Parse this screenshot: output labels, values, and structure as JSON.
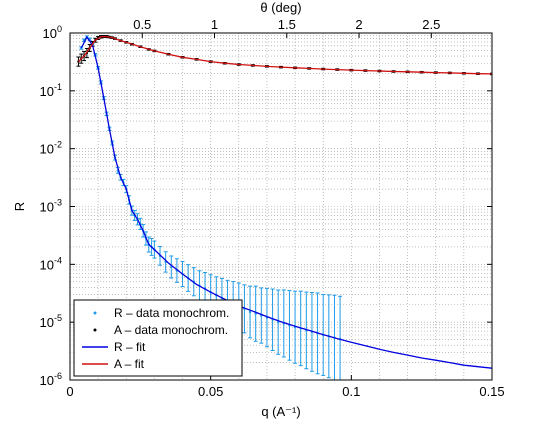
{
  "chart_data": {
    "type": "line",
    "title": "",
    "xlabel": "q (A⁻¹)",
    "ylabel": "R",
    "top_xlabel": "θ (deg)",
    "xlim": [
      0,
      0.15
    ],
    "ylim": [
      1e-06,
      1
    ],
    "yscale": "log",
    "grid": true,
    "legend_location": "bottom-left",
    "x_ticks": [
      "0",
      "0.05",
      "0.1",
      "0.15"
    ],
    "top_x_ticks": [
      "0.5",
      "1",
      "1.5",
      "2",
      "2.5"
    ],
    "y_ticks": [
      {
        "base": "10",
        "exp": "-6"
      },
      {
        "base": "10",
        "exp": "-5"
      },
      {
        "base": "10",
        "exp": "-4"
      },
      {
        "base": "10",
        "exp": "-3"
      },
      {
        "base": "10",
        "exp": "-2"
      },
      {
        "base": "10",
        "exp": "-1"
      },
      {
        "base": "10",
        "exp": "0"
      }
    ],
    "series": [
      {
        "name": "R – data monochrom.",
        "kind": "points-with-errorbars",
        "color": "#1e9be8",
        "x": [
          0.004,
          0.005,
          0.006,
          0.007,
          0.008,
          0.009,
          0.01,
          0.011,
          0.012,
          0.013,
          0.014,
          0.015,
          0.016,
          0.017,
          0.018,
          0.019,
          0.02,
          0.021,
          0.022,
          0.023,
          0.024,
          0.025,
          0.026,
          0.027,
          0.028,
          0.029,
          0.03,
          0.032,
          0.034,
          0.036,
          0.038,
          0.04,
          0.042,
          0.044,
          0.046,
          0.048,
          0.05,
          0.052,
          0.054,
          0.056,
          0.058,
          0.06,
          0.062,
          0.064,
          0.066,
          0.068,
          0.07,
          0.072,
          0.074,
          0.076,
          0.078,
          0.08,
          0.082,
          0.084,
          0.086,
          0.088,
          0.09,
          0.092,
          0.094,
          0.096
        ],
        "y": [
          0.55,
          0.75,
          0.85,
          0.78,
          0.62,
          0.42,
          0.25,
          0.14,
          0.075,
          0.04,
          0.022,
          0.0125,
          0.007,
          0.0042,
          0.0032,
          0.0026,
          0.002,
          0.0013,
          0.00085,
          0.0007,
          0.0006,
          0.0005,
          0.00038,
          0.00028,
          0.00022,
          0.0002,
          0.00018,
          0.00014,
          0.00011,
          9e-05,
          7.8e-05,
          6.8e-05,
          5.8e-05,
          5e-05,
          4.3e-05,
          3.8e-05,
          3.3e-05,
          2.9e-05,
          2.6e-05,
          2.3e-05,
          2.1e-05,
          1.9e-05,
          1.7e-05,
          1.5e-05,
          1.4e-05,
          1.3e-05,
          1.2e-05,
          1.1e-05,
          1e-05,
          9.5e-06,
          8.8e-06,
          8.2e-06,
          7.8e-06,
          7.2e-06,
          6.8e-06,
          6.4e-06,
          6e-06,
          5.7e-06,
          5.4e-06,
          5.1e-06
        ],
        "err_factor": [
          1.05,
          1.05,
          1.05,
          1.05,
          1.05,
          1.05,
          1.05,
          1.06,
          1.06,
          1.07,
          1.07,
          1.08,
          1.1,
          1.12,
          1.12,
          1.13,
          1.15,
          1.18,
          1.2,
          1.22,
          1.25,
          1.25,
          1.28,
          1.3,
          1.35,
          1.4,
          1.4,
          1.45,
          1.5,
          1.55,
          1.6,
          1.65,
          1.7,
          1.75,
          1.8,
          1.9,
          2.0,
          2.1,
          2.2,
          2.3,
          2.4,
          2.5,
          2.6,
          2.8,
          3.0,
          3.0,
          3.2,
          3.4,
          3.6,
          3.8,
          4.0,
          4.2,
          4.4,
          4.6,
          4.8,
          5.0,
          5.0,
          5.2,
          5.4,
          5.5
        ]
      },
      {
        "name": "A – data monochrom.",
        "kind": "points-with-errorbars",
        "color": "#000000",
        "x": [
          0.003,
          0.004,
          0.005,
          0.006,
          0.007,
          0.008,
          0.009,
          0.01,
          0.011,
          0.012,
          0.013,
          0.014,
          0.015,
          0.016,
          0.018,
          0.02,
          0.022,
          0.025,
          0.028,
          0.03,
          0.035,
          0.04,
          0.045,
          0.05,
          0.055,
          0.06,
          0.065,
          0.07,
          0.075,
          0.08,
          0.085,
          0.09,
          0.095,
          0.1,
          0.105,
          0.11,
          0.115,
          0.12,
          0.125,
          0.13,
          0.135,
          0.14,
          0.145,
          0.15
        ],
        "y": [
          0.32,
          0.36,
          0.4,
          0.45,
          0.55,
          0.65,
          0.75,
          0.82,
          0.86,
          0.87,
          0.87,
          0.85,
          0.83,
          0.8,
          0.74,
          0.69,
          0.64,
          0.58,
          0.52,
          0.49,
          0.43,
          0.38,
          0.35,
          0.32,
          0.3,
          0.285,
          0.275,
          0.265,
          0.257,
          0.25,
          0.244,
          0.238,
          0.233,
          0.228,
          0.224,
          0.22,
          0.216,
          0.213,
          0.21,
          0.207,
          0.204,
          0.201,
          0.198,
          0.196
        ],
        "err_factor": [
          1.2,
          1.2,
          1.2,
          1.2,
          1.15,
          1.1,
          1.08,
          1.06,
          1.05,
          1.04,
          1.04,
          1.03,
          1.03,
          1.03,
          1.03,
          1.03,
          1.03,
          1.03,
          1.03,
          1.03,
          1.03,
          1.03,
          1.03,
          1.03,
          1.03,
          1.03,
          1.03,
          1.03,
          1.03,
          1.03,
          1.03,
          1.03,
          1.03,
          1.03,
          1.03,
          1.03,
          1.03,
          1.03,
          1.03,
          1.03,
          1.03,
          1.03,
          1.03,
          1.03
        ]
      },
      {
        "name": "R – fit",
        "kind": "line",
        "color": "#0000e0",
        "x": [
          0.004,
          0.006,
          0.008,
          0.01,
          0.012,
          0.014,
          0.016,
          0.018,
          0.02,
          0.022,
          0.024,
          0.026,
          0.028,
          0.03,
          0.035,
          0.04,
          0.045,
          0.05,
          0.055,
          0.06,
          0.065,
          0.07,
          0.075,
          0.08,
          0.085,
          0.09,
          0.095,
          0.1,
          0.105,
          0.11,
          0.115,
          0.12,
          0.125,
          0.13,
          0.135,
          0.14,
          0.145,
          0.15
        ],
        "y": [
          0.55,
          0.85,
          0.62,
          0.25,
          0.075,
          0.022,
          0.007,
          0.0032,
          0.002,
          0.00085,
          0.0006,
          0.00038,
          0.00022,
          0.00018,
          0.000105,
          6.8e-05,
          4.5e-05,
          3.3e-05,
          2.5e-05,
          1.9e-05,
          1.55e-05,
          1.25e-05,
          1.02e-05,
          8.5e-06,
          7.2e-06,
          6.1e-06,
          5.2e-06,
          4.5e-06,
          3.9e-06,
          3.4e-06,
          3e-06,
          2.7e-06,
          2.4e-06,
          2.2e-06,
          2e-06,
          1.8e-06,
          1.7e-06,
          1.6e-06
        ]
      },
      {
        "name": "A – fit",
        "kind": "line",
        "color": "#d01010",
        "x": [
          0.003,
          0.005,
          0.007,
          0.009,
          0.011,
          0.013,
          0.015,
          0.018,
          0.02,
          0.025,
          0.03,
          0.035,
          0.04,
          0.045,
          0.05,
          0.055,
          0.06,
          0.065,
          0.07,
          0.075,
          0.08,
          0.085,
          0.09,
          0.095,
          0.1,
          0.105,
          0.11,
          0.115,
          0.12,
          0.125,
          0.13,
          0.135,
          0.14,
          0.145,
          0.15
        ],
        "y": [
          0.32,
          0.4,
          0.55,
          0.75,
          0.86,
          0.87,
          0.83,
          0.74,
          0.69,
          0.58,
          0.49,
          0.43,
          0.38,
          0.35,
          0.32,
          0.3,
          0.285,
          0.275,
          0.265,
          0.257,
          0.25,
          0.244,
          0.238,
          0.233,
          0.228,
          0.224,
          0.22,
          0.216,
          0.213,
          0.21,
          0.207,
          0.204,
          0.201,
          0.198,
          0.196
        ]
      }
    ]
  }
}
